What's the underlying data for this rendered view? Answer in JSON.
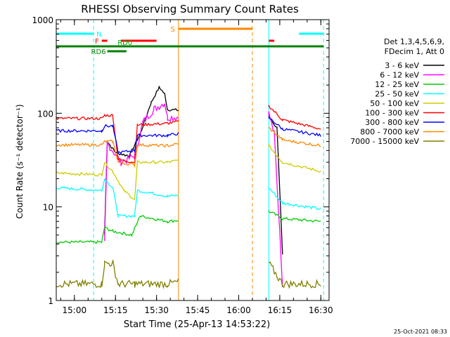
{
  "chart_data": {
    "type": "line",
    "title": "RHESSI Observing Summary Count Rates",
    "xlabel": "Start Time (25-Apr-13 14:53:22)",
    "ylabel": "Count Rate (s⁻¹ detector⁻¹)",
    "y_scale": "log",
    "ylim": [
      1,
      1000
    ],
    "xlim": [
      "14:53:22",
      "16:33:00"
    ],
    "x_ticks": [
      "15:00",
      "15:15",
      "15:30",
      "15:45",
      "16:00",
      "16:15",
      "16:30"
    ],
    "y_ticks": [
      "1",
      "10",
      "100",
      "1000"
    ],
    "grid": false,
    "legend_position": "right",
    "legend_header": [
      "Det 1,3,4,5,6,9,",
      "FDecim 1, Att 0"
    ],
    "footer_date": "25-Oct-2021 08:33",
    "series": [
      {
        "name": "3 - 6 keV",
        "color": "#000000",
        "points": [
          [
            "15:11",
            5
          ],
          [
            "15:12",
            50
          ],
          [
            "15:15",
            38
          ],
          [
            "15:20",
            35
          ],
          [
            "15:24",
            60
          ],
          [
            "15:28",
            130
          ],
          [
            "15:31",
            190
          ],
          [
            "15:33",
            160
          ],
          [
            "15:34",
            110
          ],
          [
            "16:11",
            90
          ],
          [
            "16:14",
            70
          ],
          [
            "16:16",
            3
          ]
        ]
      },
      {
        "name": "6 - 12 keV",
        "color": "#ff00ff",
        "points": [
          [
            "15:11",
            4
          ],
          [
            "15:12",
            48
          ],
          [
            "15:17",
            30
          ],
          [
            "15:22",
            35
          ],
          [
            "15:25",
            80
          ],
          [
            "15:29",
            110
          ],
          [
            "15:33",
            130
          ],
          [
            "15:34",
            90
          ],
          [
            "16:11",
            100
          ],
          [
            "16:13",
            60
          ],
          [
            "16:14",
            18
          ],
          [
            "16:16",
            1.5
          ]
        ]
      },
      {
        "name": "12 - 25 keV",
        "color": "#00cc00",
        "points": [
          [
            "14:53:22",
            4.2
          ],
          [
            "15:10",
            4.2
          ],
          [
            "15:11",
            6
          ],
          [
            "15:14",
            5.5
          ],
          [
            "15:21",
            5
          ],
          [
            "15:24",
            8
          ],
          [
            "15:34",
            7
          ],
          [
            "16:11",
            9
          ],
          [
            "16:16",
            7.5
          ],
          [
            "16:30",
            7
          ]
        ]
      },
      {
        "name": "25 - 50 keV",
        "color": "#00ffff",
        "points": [
          [
            "14:53:22",
            16
          ],
          [
            "15:10",
            15
          ],
          [
            "15:11",
            20
          ],
          [
            "15:14",
            16
          ],
          [
            "15:16",
            8
          ],
          [
            "15:22",
            8
          ],
          [
            "15:23",
            15
          ],
          [
            "15:34",
            13
          ],
          [
            "16:11",
            16
          ],
          [
            "16:16",
            11
          ],
          [
            "16:30",
            9.5
          ]
        ]
      },
      {
        "name": "50 - 100 keV",
        "color": "#cccc00",
        "points": [
          [
            "14:53:22",
            23
          ],
          [
            "15:10",
            22
          ],
          [
            "15:11",
            30
          ],
          [
            "15:14",
            24
          ],
          [
            "15:18",
            15
          ],
          [
            "15:22",
            12
          ],
          [
            "15:23",
            30
          ],
          [
            "15:34",
            30
          ],
          [
            "16:11",
            45
          ],
          [
            "16:16",
            30
          ],
          [
            "16:30",
            24
          ]
        ]
      },
      {
        "name": "100 - 300 keV",
        "color": "#ff0000",
        "points": [
          [
            "14:53:22",
            88
          ],
          [
            "15:10",
            88
          ],
          [
            "15:11",
            95
          ],
          [
            "15:14",
            95
          ],
          [
            "15:16",
            32
          ],
          [
            "15:22",
            30
          ],
          [
            "15:23",
            75
          ],
          [
            "15:34",
            78
          ],
          [
            "16:11",
            120
          ],
          [
            "16:16",
            85
          ],
          [
            "16:30",
            68
          ]
        ]
      },
      {
        "name": "300 - 800 keV",
        "color": "#0000ff",
        "points": [
          [
            "14:53:22",
            65
          ],
          [
            "15:10",
            65
          ],
          [
            "15:11",
            73
          ],
          [
            "15:14",
            73
          ],
          [
            "15:16",
            38
          ],
          [
            "15:22",
            40
          ],
          [
            "15:23",
            58
          ],
          [
            "15:34",
            58
          ],
          [
            "16:11",
            90
          ],
          [
            "16:16",
            68
          ],
          [
            "16:30",
            58
          ]
        ]
      },
      {
        "name": "800 - 7000 keV",
        "color": "#ff8800",
        "points": [
          [
            "14:53:22",
            46
          ],
          [
            "15:10",
            46
          ],
          [
            "15:11",
            50
          ],
          [
            "15:14",
            50
          ],
          [
            "15:16",
            30
          ],
          [
            "15:22",
            28
          ],
          [
            "15:23",
            46
          ],
          [
            "15:34",
            45
          ],
          [
            "16:11",
            70
          ],
          [
            "16:16",
            52
          ],
          [
            "16:30",
            45
          ]
        ]
      },
      {
        "name": "7000 - 15000 keV",
        "color": "#808000",
        "points": [
          [
            "14:53:22",
            1.5
          ],
          [
            "15:10",
            1.5
          ],
          [
            "15:11",
            2.5
          ],
          [
            "15:14",
            2.5
          ],
          [
            "15:16",
            1.5
          ],
          [
            "15:22",
            1.5
          ],
          [
            "15:34",
            1.5
          ],
          [
            "16:11",
            2.5
          ],
          [
            "16:16",
            1.5
          ],
          [
            "16:30",
            1.5
          ]
        ]
      }
    ],
    "flag_bars": [
      {
        "label": "N",
        "color": "#00ffff",
        "segments": [
          [
            "14:53:22",
            "15:07"
          ],
          [
            "16:22",
            "16:31"
          ]
        ],
        "level": 1
      },
      {
        "label": "S",
        "color": "#ff8800",
        "segments": [
          [
            "15:38",
            "16:05"
          ]
        ],
        "level": 2
      },
      {
        "label": "F",
        "color": "#ff0000",
        "segments": [
          [
            "15:10",
            "15:12"
          ],
          [
            "15:17",
            "15:30"
          ],
          [
            "16:11",
            "16:13"
          ]
        ],
        "level": 3
      },
      {
        "label": "RD0",
        "color": "#00aa00",
        "segments": [
          [
            "15:11",
            "15:15"
          ]
        ],
        "level": 4
      },
      {
        "label": "",
        "color": "#008000",
        "segments": [
          [
            "14:53:22",
            "16:31"
          ]
        ],
        "level": 5
      },
      {
        "label": "RD6",
        "color": "#008000",
        "segments": [
          [
            "15:12",
            "15:19"
          ]
        ],
        "level": 6
      }
    ],
    "vlines": [
      {
        "t": "14:53:22",
        "color": "#00ffff",
        "style": "solid"
      },
      {
        "t": "15:07",
        "color": "#00ffff",
        "style": "dashed"
      },
      {
        "t": "15:38",
        "color": "#ff8800",
        "style": "solid"
      },
      {
        "t": "16:05",
        "color": "#ff8800",
        "style": "dashed"
      },
      {
        "t": "16:11",
        "color": "#00ffff",
        "style": "solid"
      },
      {
        "t": "16:31",
        "color": "#00ffff",
        "style": "dashed"
      }
    ],
    "gaps": [
      [
        "15:38",
        "16:11"
      ]
    ]
  }
}
